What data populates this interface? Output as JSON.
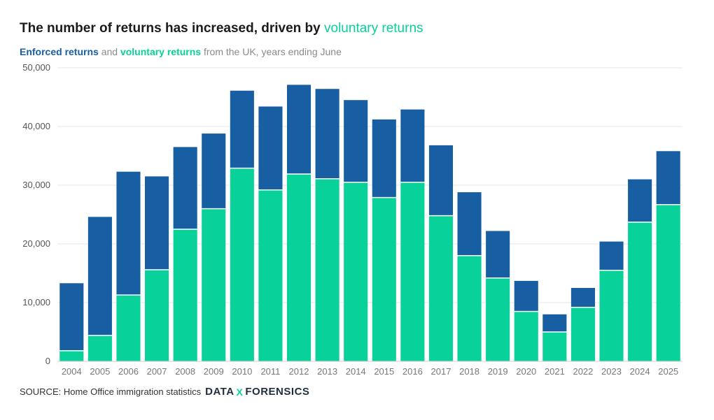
{
  "header": {
    "title_main": "The number of returns has increased, driven by",
    "title_accent": "voluntary returns",
    "sub_enforced": "Enforced returns",
    "sub_and": "and",
    "sub_voluntary": "voluntary returns",
    "sub_rest": "from the UK, years ending June"
  },
  "footer": {
    "source": "SOURCE: Home Office immigration statistics",
    "logo_left": "DATA",
    "logo_x": "X",
    "logo_right": "FORENSICS"
  },
  "colors": {
    "enforced": "#175ea2",
    "voluntary": "#08d19a",
    "grid": "#e6e6e6",
    "axis_text": "#777777"
  },
  "chart_data": {
    "type": "bar",
    "stacked": true,
    "title": "The number of returns has increased, driven by voluntary returns",
    "subtitle": "Enforced returns and voluntary returns from the UK, years ending June",
    "xlabel": "",
    "ylabel": "",
    "ylim": [
      0,
      50000
    ],
    "yticks": [
      0,
      10000,
      20000,
      30000,
      40000,
      50000
    ],
    "ytick_labels": [
      "0",
      "10,000",
      "20,000",
      "30,000",
      "40,000",
      "50,000"
    ],
    "grid": true,
    "categories": [
      "2004",
      "2005",
      "2006",
      "2007",
      "2008",
      "2009",
      "2010",
      "2011",
      "2012",
      "2013",
      "2014",
      "2015",
      "2016",
      "2017",
      "2018",
      "2019",
      "2020",
      "2021",
      "2022",
      "2023",
      "2024",
      "2025"
    ],
    "series": [
      {
        "name": "Voluntary returns",
        "values": [
          1800,
          4400,
          11300,
          15600,
          22500,
          26000,
          32900,
          29200,
          31900,
          31100,
          30500,
          27900,
          30500,
          24800,
          18000,
          14200,
          8500,
          5000,
          9200,
          15500,
          23700,
          26700
        ]
      },
      {
        "name": "Enforced returns",
        "values": [
          11500,
          20200,
          21000,
          15900,
          14000,
          12800,
          13200,
          14200,
          15200,
          15300,
          14000,
          13300,
          12400,
          12000,
          10800,
          8000,
          5200,
          3000,
          3300,
          4900,
          7300,
          9100
        ]
      }
    ]
  }
}
